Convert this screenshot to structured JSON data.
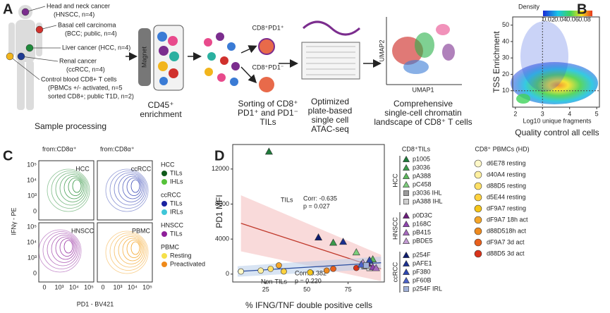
{
  "panel_a": {
    "label": "A",
    "sources": [
      {
        "lines": [
          "Head and neck cancer",
          "(HNSCC, n=4)"
        ],
        "color": "#7b2d8e"
      },
      {
        "lines": [
          "Basal cell carcinoma",
          "(BCC; public, n=4)"
        ],
        "color": "#d0312d"
      },
      {
        "lines": [
          "Liver cancer (HCC, n=4)"
        ],
        "color": "#1f8a3b"
      },
      {
        "lines": [
          "Renal cancer",
          "(ccRCC, n=4)"
        ],
        "color": "#1f3a93"
      },
      {
        "lines": [
          "Control blood CD8+ T cells",
          "(PBMCs +/- activated, n=5",
          "sorted CD8+; public T1D, n=2)"
        ],
        "color": "#f2b51c"
      }
    ],
    "caption": "Sample processing",
    "magnet": "Magnet",
    "sorted": [
      "CD8⁺PD1⁺",
      "CD8⁺PD1⁻"
    ],
    "umap_axes": [
      "UMAP1",
      "UMAP2"
    ],
    "steps": [
      {
        "lines": [
          "CD45⁺",
          "enrichment"
        ]
      },
      {
        "lines": [
          "Sorting of CD8⁺",
          "PD1⁺ and PD1⁻",
          "TILs"
        ]
      },
      {
        "lines": [
          "Optimized",
          "plate-based",
          "single cell",
          "ATAC-seq"
        ]
      },
      {
        "lines": [
          "Comprehensive",
          "single-cell chromatin",
          "landscape of CD8⁺ T cells"
        ]
      }
    ]
  },
  "panel_b": {
    "label": "B",
    "legend_title": "Density",
    "legend_ticks": [
      "0.02",
      "0.04",
      "0.06",
      "0.08"
    ],
    "xlim": [
      1.9,
      5.1
    ],
    "xticks": [
      2,
      3,
      4,
      5
    ],
    "ylim": [
      0,
      55
    ],
    "yticks": [
      10,
      20,
      30,
      40,
      50
    ],
    "thresholds": {
      "x": 3,
      "y": 10
    },
    "ylabel": "TSS Enrichment",
    "xlabel": "Log10 unique fragments",
    "caption": "Quality control all cells"
  },
  "panel_c": {
    "label": "C",
    "gate": "from:CD8α⁺",
    "plots": [
      {
        "title": "HCC",
        "color": "#1e8a2e"
      },
      {
        "title": "ccRCC",
        "color": "#2a3bb0"
      },
      {
        "title": "HNSCC",
        "color": "#8e1f9a"
      },
      {
        "title": "PBMC",
        "color": "#f39c12"
      }
    ],
    "yticks": [
      "10⁵",
      "10⁴",
      "10³",
      "0"
    ],
    "xticks": [
      "0",
      "10³",
      "10⁴",
      "10⁵"
    ],
    "ylabel": "IFNγ - PE",
    "xlabel": "PD1 - BV421",
    "legend": [
      {
        "group": "HCC",
        "items": [
          {
            "name": "TILs",
            "color": "#0f5a1a"
          },
          {
            "name": "IHLs",
            "color": "#56c23a"
          }
        ]
      },
      {
        "group": "ccRCC",
        "items": [
          {
            "name": "TILs",
            "color": "#1a22a0"
          },
          {
            "name": "IRLs",
            "color": "#3fc6d8"
          }
        ]
      },
      {
        "group": "HNSCC",
        "items": [
          {
            "name": "TILs",
            "color": "#8e1f9a"
          }
        ]
      },
      {
        "group": "PBMC",
        "items": [
          {
            "name": "Resting",
            "color": "#f5e04a"
          },
          {
            "name": "Preactivated",
            "color": "#ef8a1a"
          }
        ]
      }
    ]
  },
  "panel_d": {
    "label": "D",
    "ylabel": "PD1 MFI",
    "xlabel": "% IFNG/TNF double positive cells",
    "xlim": [
      5,
      97
    ],
    "xticks": [
      25,
      50,
      75
    ],
    "ylim": [
      -900,
      14800
    ],
    "yticks": [
      0,
      4000,
      8000,
      12000
    ],
    "til_annotation": [
      "TILs",
      "Corr: -0.635",
      "p = 0.027"
    ],
    "nontil_annotation": [
      "Non-TILs",
      "Corr: 0.382",
      "p = 0.220"
    ],
    "til_legend_title": "CD8⁺TILs",
    "pbmc_legend_title": "CD8⁺ PBMCs (HD)",
    "til_groups": [
      {
        "group": "HCC",
        "items": [
          {
            "name": "p1005",
            "color": "#1e7b3a",
            "shape": "triangle",
            "x": 27,
            "y": 14000
          },
          {
            "name": "p3036",
            "color": "#3a9a4a",
            "shape": "triangle",
            "x": 66,
            "y": 3600
          },
          {
            "name": "pA388",
            "color": "#5cb85c",
            "shape": "triangle",
            "x": 90,
            "y": 1700
          },
          {
            "name": "pC458",
            "color": "#7ccd7c",
            "shape": "triangle",
            "x": 80,
            "y": 2500
          },
          {
            "name": "p3036 IHL",
            "color": "#9a9a9a",
            "shape": "square",
            "x": 85,
            "y": 900
          },
          {
            "name": "pA388 IHL",
            "color": "#cfcfcf",
            "shape": "square",
            "x": 88,
            "y": 700
          }
        ]
      },
      {
        "group": "HNSCC",
        "items": [
          {
            "name": "p0D3C",
            "color": "#6a1b7a",
            "shape": "triangle",
            "x": 87,
            "y": 1200
          },
          {
            "name": "p168C",
            "color": "#8e44ad",
            "shape": "triangle",
            "x": 90,
            "y": 800
          },
          {
            "name": "pB415",
            "color": "#a569bd",
            "shape": "triangle",
            "x": 92,
            "y": 700
          },
          {
            "name": "pBDE5",
            "color": "#c39bd3",
            "shape": "triangle",
            "x": 84,
            "y": 1300
          }
        ]
      },
      {
        "group": "ccRCC",
        "items": [
          {
            "name": "p254F",
            "color": "#0d1b6e",
            "shape": "triangle",
            "x": 57,
            "y": 4200
          },
          {
            "name": "pAFE1",
            "color": "#1a2f8f",
            "shape": "triangle",
            "x": 72,
            "y": 3700
          },
          {
            "name": "pF380",
            "color": "#2c46b0",
            "shape": "triangle",
            "x": 88,
            "y": 1600
          },
          {
            "name": "pF60B",
            "color": "#4a62c9",
            "shape": "triangle",
            "x": 83,
            "y": 1100
          },
          {
            "name": "p254F IRL",
            "color": "#9fb0d8",
            "shape": "square",
            "x": 86,
            "y": 1000
          }
        ]
      }
    ],
    "pbmc_items": [
      {
        "name": "d6E78 resting",
        "color": "#fff8c8",
        "x": 10,
        "y": 300
      },
      {
        "name": "d40A4 resting",
        "color": "#fff0a0",
        "x": 22,
        "y": 400
      },
      {
        "name": "d88D5 resting",
        "color": "#ffe066",
        "x": 28,
        "y": 600
      },
      {
        "name": "d5E44 resting",
        "color": "#ffd23f",
        "x": 36,
        "y": 300
      },
      {
        "name": "dF9A7 resting",
        "color": "#f5c518",
        "x": 52,
        "y": 200
      },
      {
        "name": "dF9A7 18h act",
        "color": "#f4a62a",
        "x": 33,
        "y": 1000
      },
      {
        "name": "d88D518h act",
        "color": "#ee8a1e",
        "x": 62,
        "y": 400
      },
      {
        "name": "dF9A7 3d act",
        "color": "#e8601c",
        "x": 66,
        "y": 600
      },
      {
        "name": "d88D5 3d act",
        "color": "#d9331a",
        "x": 80,
        "y": 700
      }
    ]
  }
}
